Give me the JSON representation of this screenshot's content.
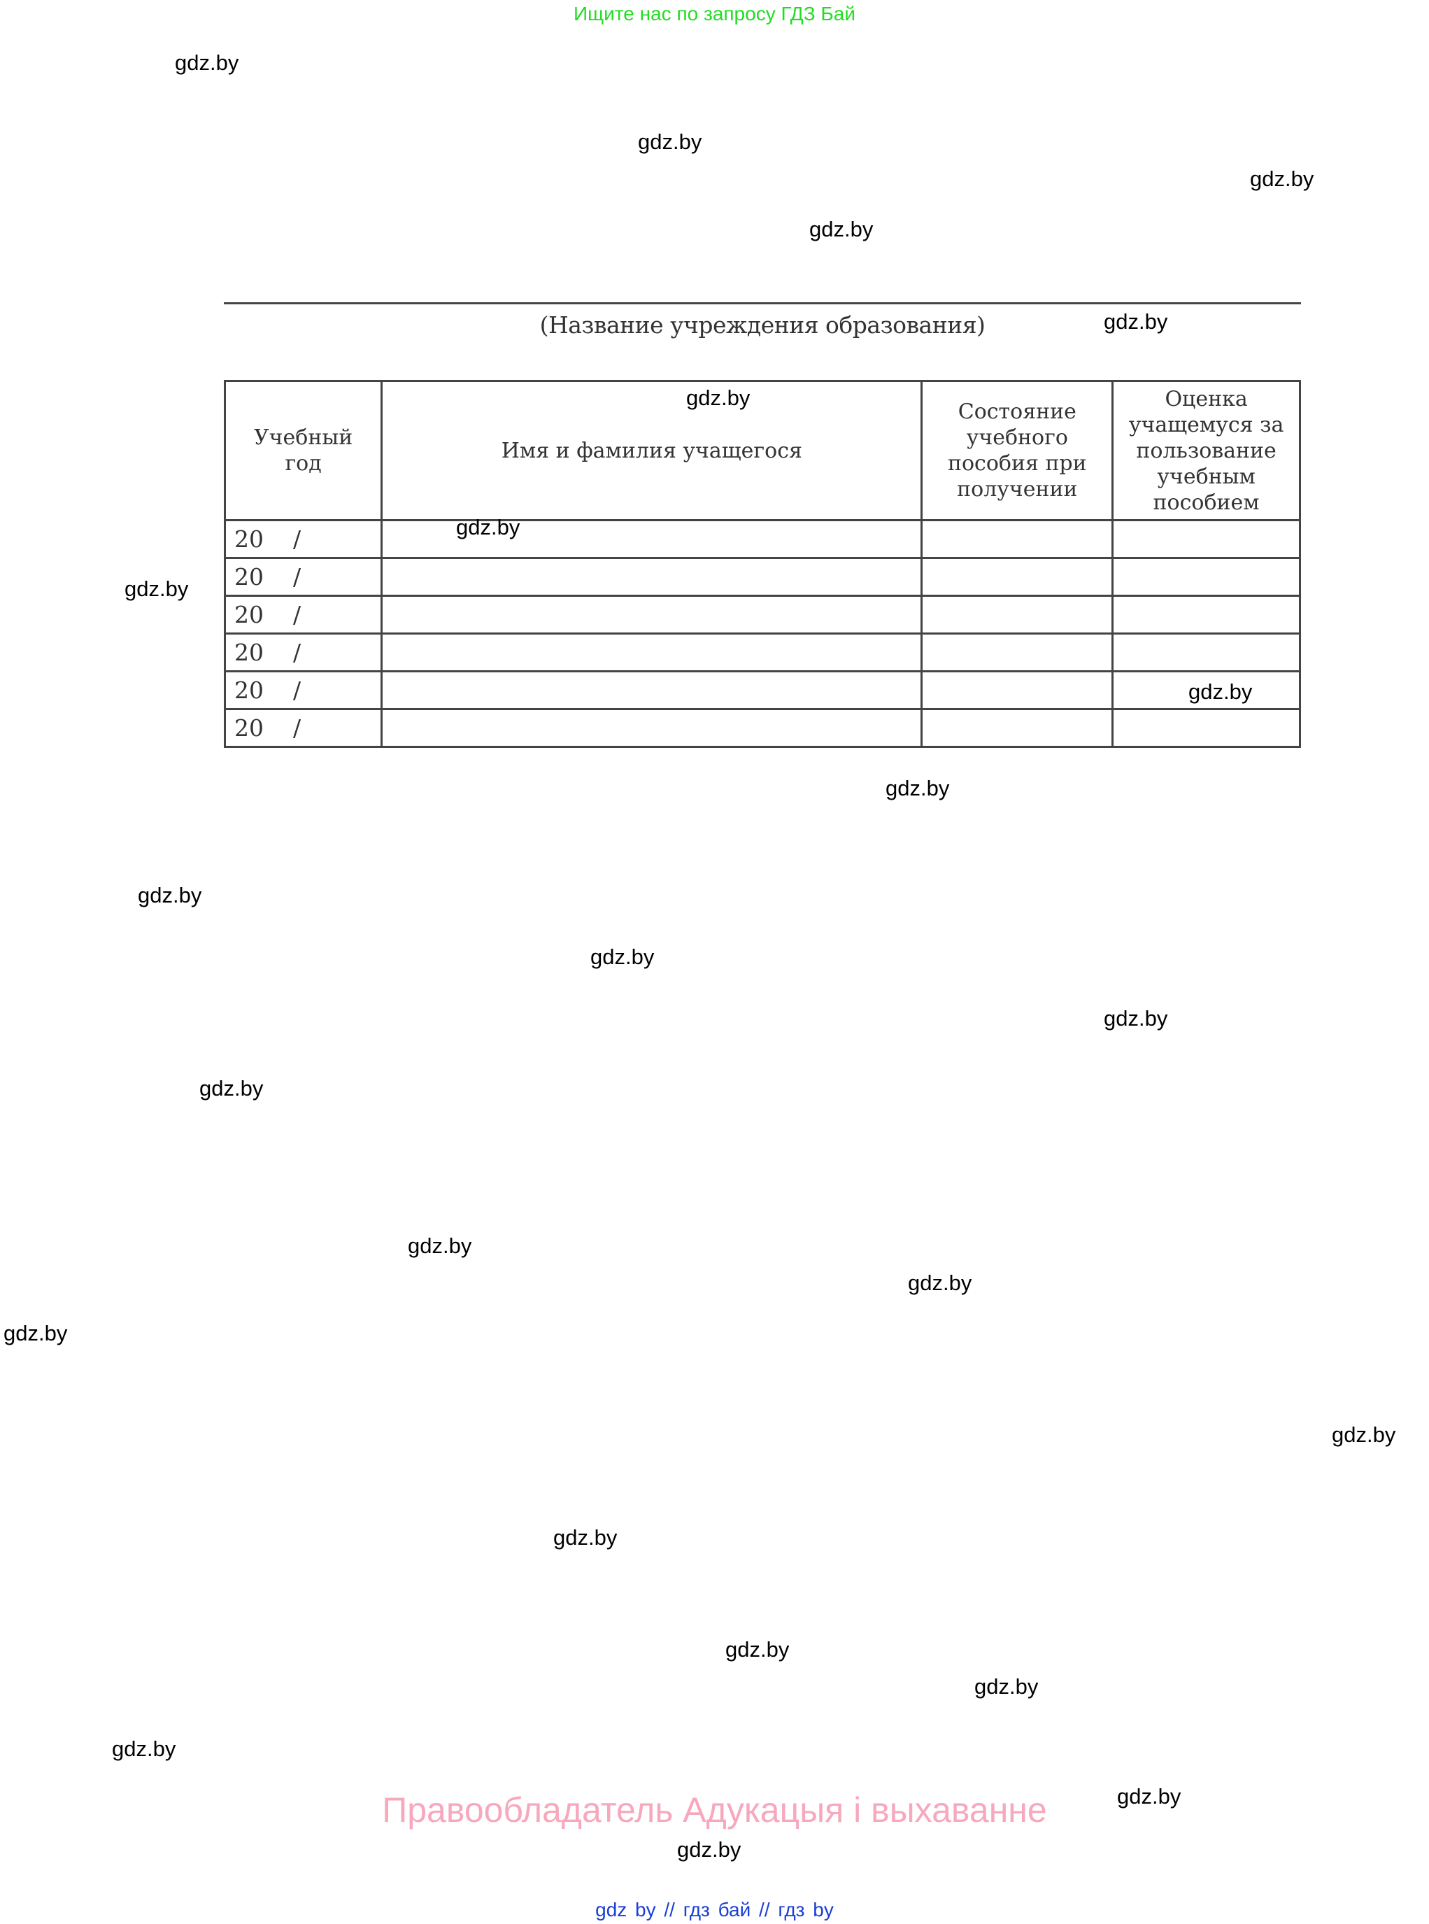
{
  "top_note": "Ищите нас по запросу ГДЗ Бай",
  "institution_caption": "(Название учреждения образования)",
  "table": {
    "headers": [
      "Учебный год",
      "Имя и фамилия учащегося",
      "Состояние учебного пособия при получении",
      "Оценка учащемуся за пользование учебным пособием"
    ],
    "rows": [
      {
        "year_prefix": "20",
        "year_sep": "/"
      },
      {
        "year_prefix": "20",
        "year_sep": "/"
      },
      {
        "year_prefix": "20",
        "year_sep": "/"
      },
      {
        "year_prefix": "20",
        "year_sep": "/"
      },
      {
        "year_prefix": "20",
        "year_sep": "/"
      },
      {
        "year_prefix": "20",
        "year_sep": "/"
      }
    ]
  },
  "watermark": "gdz.by",
  "copyright": "Правообладатель Адукацыя і выхаванне",
  "footer_links": "gdz by  //  гдз бай  //  гдз by",
  "colors": {
    "top_note": "#22dd22",
    "copyright": "#f7a8bd",
    "footer": "#1a3fd6"
  }
}
